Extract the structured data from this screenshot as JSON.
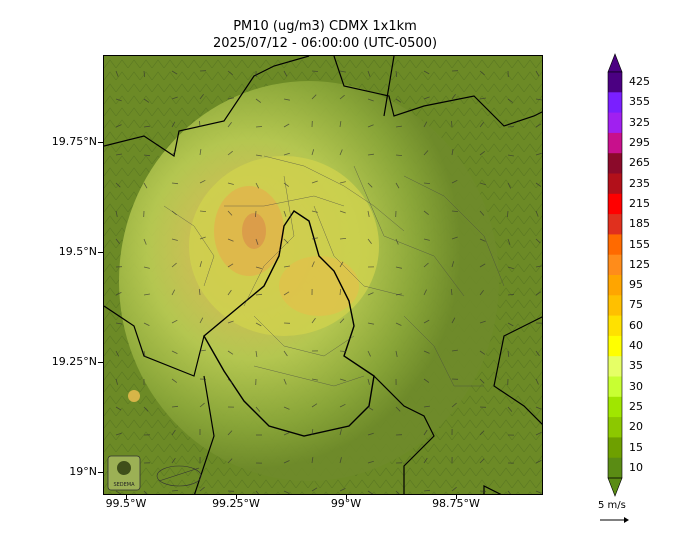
{
  "title_line1": "PM10 (ug/m3) CDMX 1x1km",
  "title_line2": "2025/07/12 - 06:00:00 (UTC-0500)",
  "map": {
    "lat_labels": [
      "19.75°N",
      "19.5°N",
      "19.25°N",
      "19°N"
    ],
    "lon_labels": [
      "99.5°W",
      "99.25°W",
      "99°W",
      "98.75°W"
    ],
    "lat_range": [
      18.95,
      19.95
    ],
    "lon_range": [
      -99.55,
      -98.55
    ],
    "field": "PM10 concentration (ug/m3)",
    "max_region": "northwest / central CDMX, approx. 75-95 ug/m3",
    "background_level": "10-20 ug/m3"
  },
  "colorbar": {
    "levels": [
      "425",
      "355",
      "325",
      "295",
      "265",
      "235",
      "215",
      "185",
      "155",
      "125",
      "95",
      "75",
      "60",
      "40",
      "35",
      "30",
      "25",
      "20",
      "15",
      "10"
    ],
    "colors": [
      "#4b0082",
      "#7a1fff",
      "#a020f0",
      "#c8108c",
      "#8b0a2a",
      "#b2101a",
      "#ff0000",
      "#e0301e",
      "#ff6a00",
      "#ff8c1a",
      "#ffa500",
      "#ffc000",
      "#ffe100",
      "#ffff00",
      "#e6ff66",
      "#c8ff32",
      "#a0e600",
      "#8cc800",
      "#6ea000",
      "#5a8c14"
    ]
  },
  "wind_key": {
    "label": "5 m/s"
  },
  "logos": [
    "SEDEMA"
  ]
}
